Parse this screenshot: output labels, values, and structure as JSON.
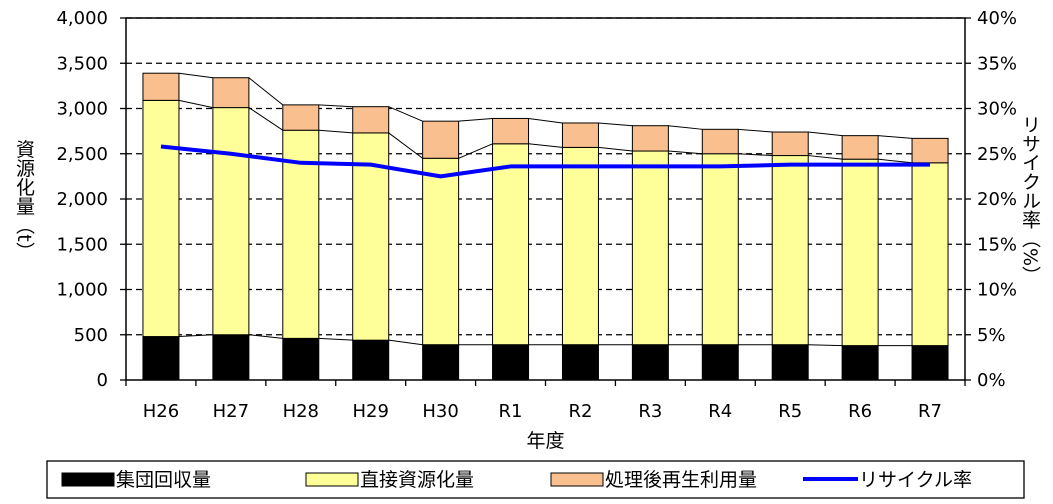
{
  "chart_data": {
    "type": "bar",
    "stacked": true,
    "categories": [
      "H26",
      "H27",
      "H28",
      "H29",
      "H30",
      "R1",
      "R2",
      "R3",
      "R4",
      "R5",
      "R6",
      "R7"
    ],
    "series": [
      {
        "name": "集団回収量",
        "type": "bar",
        "axis": "left",
        "color": "#000000",
        "values": [
          480,
          500,
          460,
          440,
          390,
          390,
          390,
          390,
          390,
          390,
          380,
          380
        ]
      },
      {
        "name": "直接資源化量",
        "type": "bar",
        "axis": "left",
        "color": "#ffff99",
        "values": [
          2610,
          2510,
          2300,
          2290,
          2060,
          2220,
          2180,
          2140,
          2110,
          2090,
          2060,
          2020
        ]
      },
      {
        "name": "処理後再生利用量",
        "type": "bar",
        "axis": "left",
        "color": "#fabf8f",
        "values": [
          300,
          330,
          280,
          290,
          410,
          280,
          270,
          280,
          270,
          260,
          260,
          270
        ]
      },
      {
        "name": "リサイクル率",
        "type": "line",
        "axis": "right",
        "color": "#0000ff",
        "values": [
          25.8,
          25.0,
          24.0,
          23.8,
          22.5,
          23.6,
          23.6,
          23.6,
          23.6,
          23.8,
          23.8,
          23.8
        ]
      }
    ],
    "xlabel": "年度",
    "ylabel": "資源化量（t）",
    "y2label": "リサイクル率（%）",
    "ylim": [
      0,
      4000
    ],
    "y2lim": [
      0,
      40
    ],
    "yticks": [
      "0",
      "500",
      "1,000",
      "1,500",
      "2,000",
      "2,500",
      "3,000",
      "3,500",
      "4,000"
    ],
    "y2ticks": [
      "0%",
      "5%",
      "10%",
      "15%",
      "20%",
      "25%",
      "30%",
      "35%",
      "40%"
    ],
    "grid": "horizontal-dashed",
    "legend_position": "bottom"
  }
}
